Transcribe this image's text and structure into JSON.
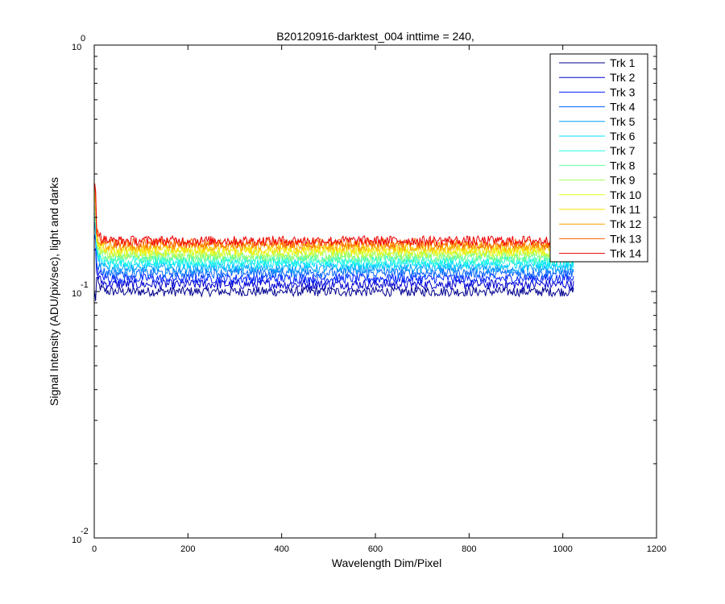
{
  "chart_data": {
    "type": "line",
    "title": "B20120916-darktest_004 inttime = 240,",
    "xlabel": "Wavelength Dim/Pixel",
    "ylabel": "Signal Intensity (ADU/pix/sec), light and darks",
    "xlim": [
      0,
      1200
    ],
    "ylim": [
      0.01,
      1
    ],
    "yscale": "log",
    "x_ticks": [
      0,
      200,
      400,
      600,
      800,
      1000,
      1200
    ],
    "x_tick_labels": [
      "0",
      "200",
      "400",
      "600",
      "800",
      "1000",
      "1200"
    ],
    "y_ticks": [
      {
        "value": 0.01,
        "base": "10",
        "exp": "-2"
      },
      {
        "value": 0.1,
        "base": "10",
        "exp": "-1"
      },
      {
        "value": 1,
        "base": "10",
        "exp": "0"
      }
    ],
    "grid": false,
    "legend_position": "top-right",
    "x_range": [
      1,
      1024
    ],
    "series": [
      {
        "name": "Trk 1",
        "color": "#00008f",
        "level": 0.1
      },
      {
        "name": "Trk 2",
        "color": "#0000cf",
        "level": 0.107
      },
      {
        "name": "Trk 3",
        "color": "#0020ff",
        "level": 0.113
      },
      {
        "name": "Trk 4",
        "color": "#0060ff",
        "level": 0.119
      },
      {
        "name": "Trk 5",
        "color": "#00a0ff",
        "level": 0.124
      },
      {
        "name": "Trk 6",
        "color": "#00dfff",
        "level": 0.129
      },
      {
        "name": "Trk 7",
        "color": "#20ffdf",
        "level": 0.133
      },
      {
        "name": "Trk 8",
        "color": "#60ff9f",
        "level": 0.137
      },
      {
        "name": "Trk 9",
        "color": "#9fff60",
        "level": 0.141
      },
      {
        "name": "Trk 10",
        "color": "#dfff20",
        "level": 0.145
      },
      {
        "name": "Trk 11",
        "color": "#ffdf00",
        "level": 0.149
      },
      {
        "name": "Trk 12",
        "color": "#ff9f00",
        "level": 0.153
      },
      {
        "name": "Trk 13",
        "color": "#ff6000",
        "level": 0.157
      },
      {
        "name": "Trk 14",
        "color": "#ef0000",
        "level": 0.161
      }
    ]
  }
}
